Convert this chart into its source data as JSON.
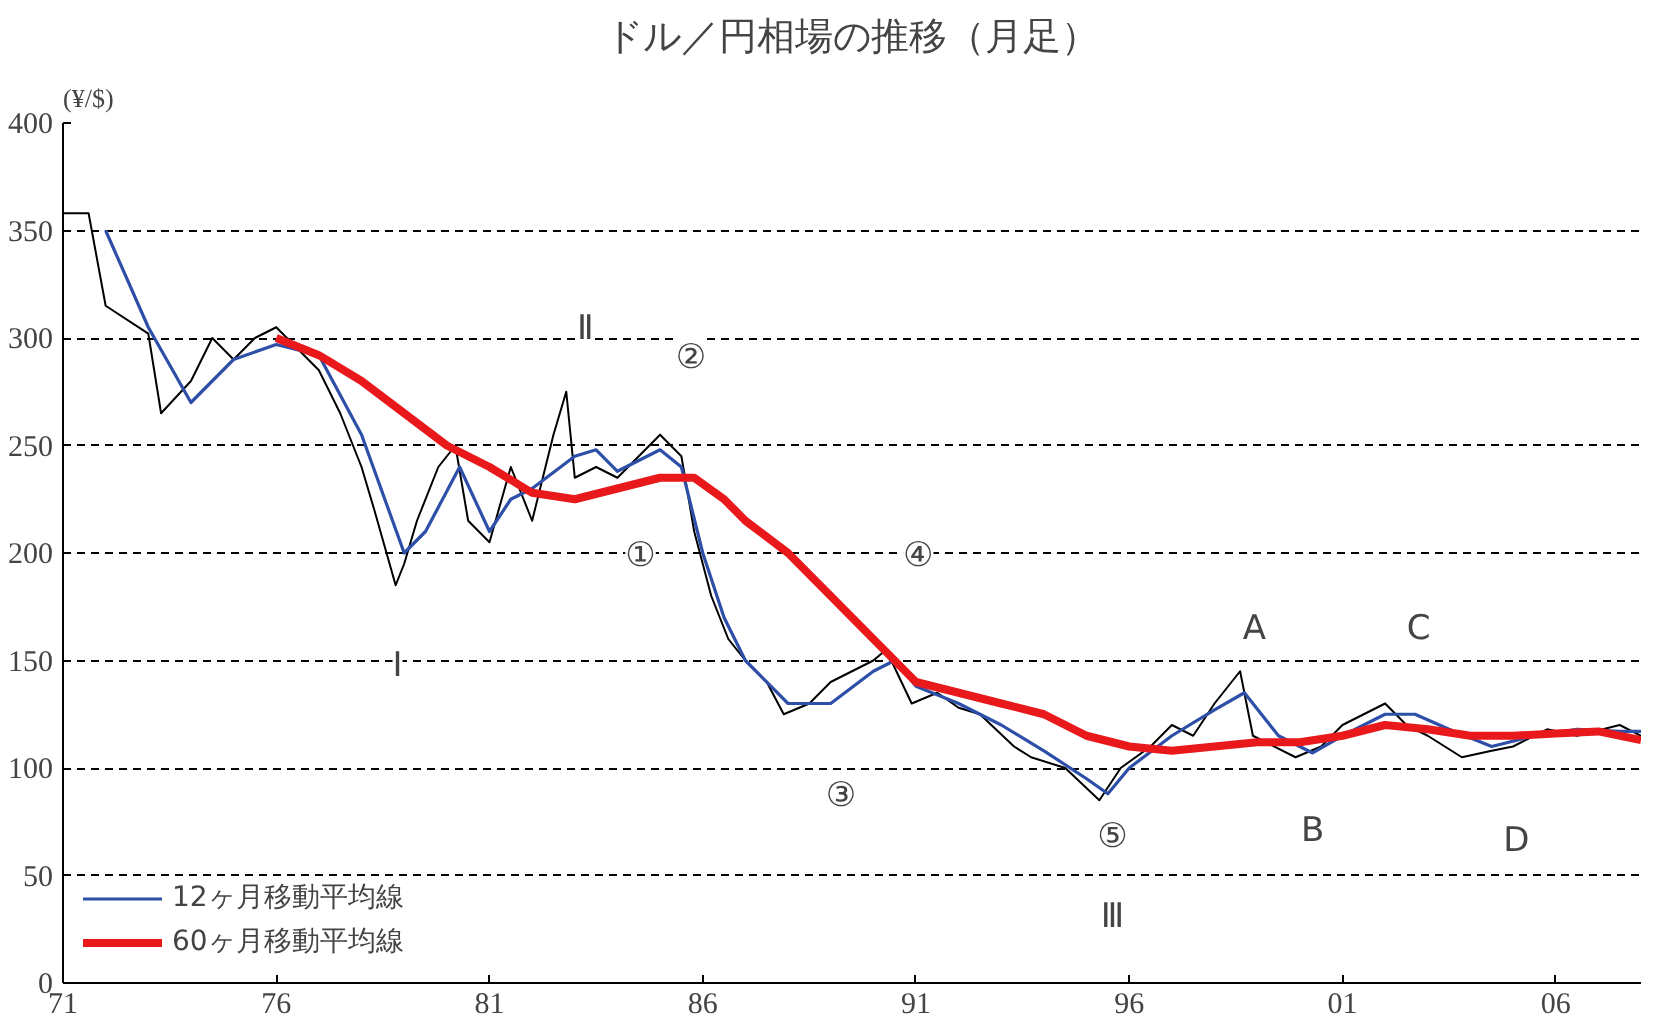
{
  "chart_data": {
    "type": "line",
    "title": "ドル／円相場の推移（月足）",
    "ylabel": "(¥/$)",
    "xlim": [
      1971,
      2008
    ],
    "ylim": [
      0,
      400
    ],
    "xticks": [
      {
        "value": 1971,
        "label": "71"
      },
      {
        "value": 1976,
        "label": "76"
      },
      {
        "value": 1981,
        "label": "81"
      },
      {
        "value": 1986,
        "label": "86"
      },
      {
        "value": 1991,
        "label": "91"
      },
      {
        "value": 1996,
        "label": "96"
      },
      {
        "value": 2001,
        "label": "01"
      },
      {
        "value": 2006,
        "label": "06"
      }
    ],
    "yticks": [
      0,
      50,
      100,
      150,
      200,
      250,
      300,
      350,
      400
    ],
    "grid": "y",
    "legend": "bottom left",
    "marker": "none",
    "line_style": "solid",
    "series": [
      {
        "color": "#000000",
        "x": [
          1971,
          1971.6,
          1972,
          1973,
          1973.3,
          1974,
          1974.5,
          1975,
          1975.5,
          1976,
          1976.5,
          1977,
          1977.5,
          1978,
          1978.3,
          1978.8,
          1979,
          1979.3,
          1979.8,
          1980.2,
          1980.5,
          1981,
          1981.5,
          1982,
          1982.5,
          1982.8,
          1983,
          1983.5,
          1984,
          1984.5,
          1985,
          1985.5,
          1985.8,
          1986.2,
          1986.6,
          1987,
          1987.5,
          1987.9,
          1988.5,
          1989,
          1989.5,
          1990,
          1990.3,
          1990.9,
          1991.5,
          1992,
          1992.5,
          1993.3,
          1993.7,
          1994.5,
          1995.3,
          1995.8,
          1996.5,
          1997,
          1997.5,
          1998,
          1998.6,
          1998.9,
          1999.9,
          2000.5,
          2001,
          2002,
          2002.5,
          2003,
          2003.8,
          2004.5,
          2005,
          2005.8,
          2006.5,
          2007.5,
          2008
        ],
        "values": [
          358,
          358,
          315,
          302,
          265,
          280,
          300,
          290,
          300,
          305,
          295,
          285,
          265,
          240,
          220,
          185,
          195,
          215,
          240,
          250,
          215,
          205,
          240,
          215,
          255,
          275,
          235,
          240,
          235,
          245,
          255,
          245,
          210,
          180,
          160,
          150,
          140,
          125,
          130,
          140,
          145,
          150,
          155,
          130,
          135,
          128,
          125,
          110,
          105,
          100,
          85,
          100,
          110,
          120,
          115,
          130,
          145,
          115,
          105,
          110,
          120,
          130,
          120,
          115,
          105,
          108,
          110,
          118,
          115,
          120,
          115
        ]
      },
      {
        "name": "12ヶ月移動平均線",
        "color": "#2e4fa8",
        "x": [
          1972,
          1973,
          1974,
          1975,
          1976,
          1977,
          1978,
          1979,
          1979.5,
          1980.3,
          1981,
          1981.5,
          1982,
          1983,
          1983.5,
          1984,
          1985,
          1985.5,
          1986,
          1986.5,
          1987,
          1988,
          1989,
          1990,
          1990.5,
          1991,
          1992,
          1993,
          1994,
          1995,
          1995.5,
          1996,
          1997,
          1998,
          1998.7,
          1999.5,
          2000.3,
          2001,
          2002,
          2002.7,
          2003.5,
          2004.5,
          2005.5,
          2006.5,
          2007.5,
          2008
        ],
        "values": [
          350,
          305,
          270,
          290,
          297,
          292,
          255,
          200,
          210,
          240,
          210,
          225,
          230,
          245,
          248,
          238,
          248,
          240,
          200,
          170,
          150,
          130,
          130,
          145,
          150,
          138,
          130,
          120,
          108,
          95,
          88,
          100,
          115,
          127,
          135,
          115,
          107,
          115,
          125,
          125,
          118,
          110,
          115,
          118,
          117,
          117
        ]
      },
      {
        "name": "60ヶ月移動平均線",
        "color": "#e8181b",
        "x": [
          1976,
          1977,
          1978,
          1979,
          1980,
          1981,
          1982,
          1983,
          1984,
          1985,
          1985.8,
          1986.5,
          1987,
          1988,
          1989,
          1990,
          1991,
          1992,
          1993,
          1994,
          1995,
          1996,
          1997,
          1998,
          1999,
          2000,
          2001,
          2002,
          2003,
          2004,
          2005,
          2006,
          2007,
          2008
        ],
        "values": [
          300,
          292,
          280,
          265,
          250,
          240,
          228,
          225,
          230,
          235,
          235,
          225,
          215,
          200,
          180,
          160,
          140,
          135,
          130,
          125,
          115,
          110,
          108,
          110,
          112,
          112,
          115,
          120,
          118,
          115,
          115,
          116,
          117,
          113
        ]
      }
    ],
    "annotations": [
      "Ⅰ",
      "Ⅱ",
      "Ⅲ",
      "①",
      "②",
      "③",
      "④",
      "⑤",
      "A",
      "B",
      "C",
      "D"
    ]
  }
}
